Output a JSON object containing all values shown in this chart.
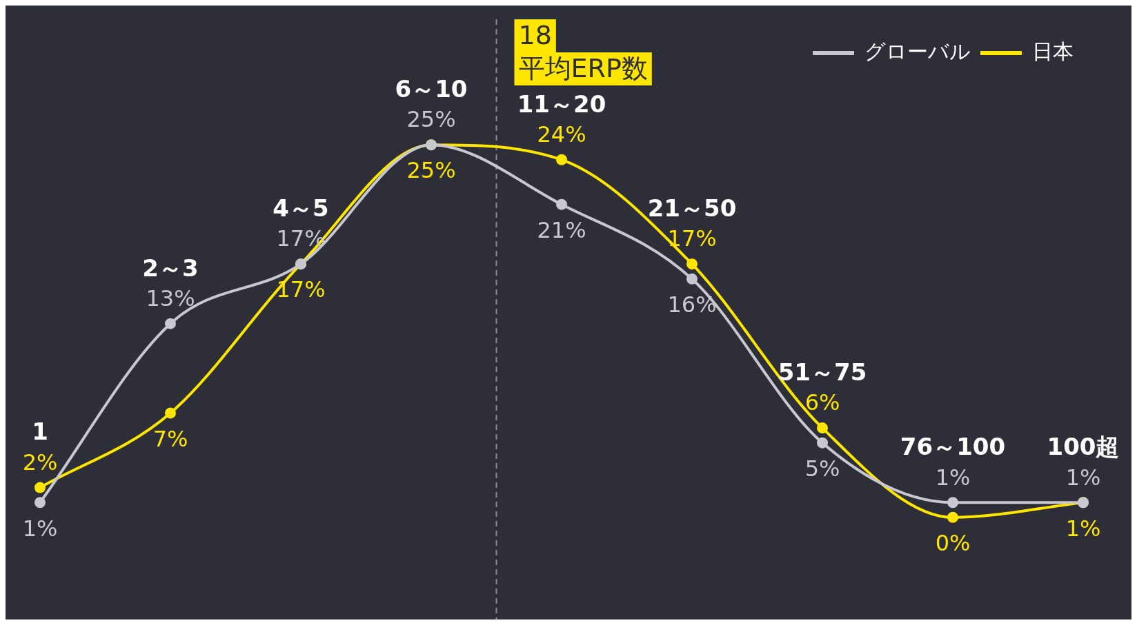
{
  "chart_data": {
    "type": "line",
    "categories": [
      "1",
      "2～3",
      "4～5",
      "6～10",
      "11～20",
      "21～50",
      "51～75",
      "76～100",
      "100超"
    ],
    "series": [
      {
        "name": "グローバル",
        "color": "#c8c8d0",
        "values": [
          1,
          13,
          17,
          25,
          21,
          16,
          5,
          1,
          1
        ],
        "value_labels": [
          "1%",
          "13%",
          "17%",
          "25%",
          "21%",
          "16%",
          "5%",
          "1%",
          "1%"
        ]
      },
      {
        "name": "日本",
        "color": "#ffe600",
        "values": [
          2,
          7,
          17,
          25,
          24,
          17,
          6,
          0,
          1
        ],
        "value_labels": [
          "2%",
          "7%",
          "17%",
          "25%",
          "24%",
          "17%",
          "6%",
          "0%",
          "1%"
        ]
      }
    ],
    "annotations": [
      "18",
      "平均ERP数"
    ],
    "legend": "top right",
    "marker": "circle",
    "line_style": "solid"
  }
}
